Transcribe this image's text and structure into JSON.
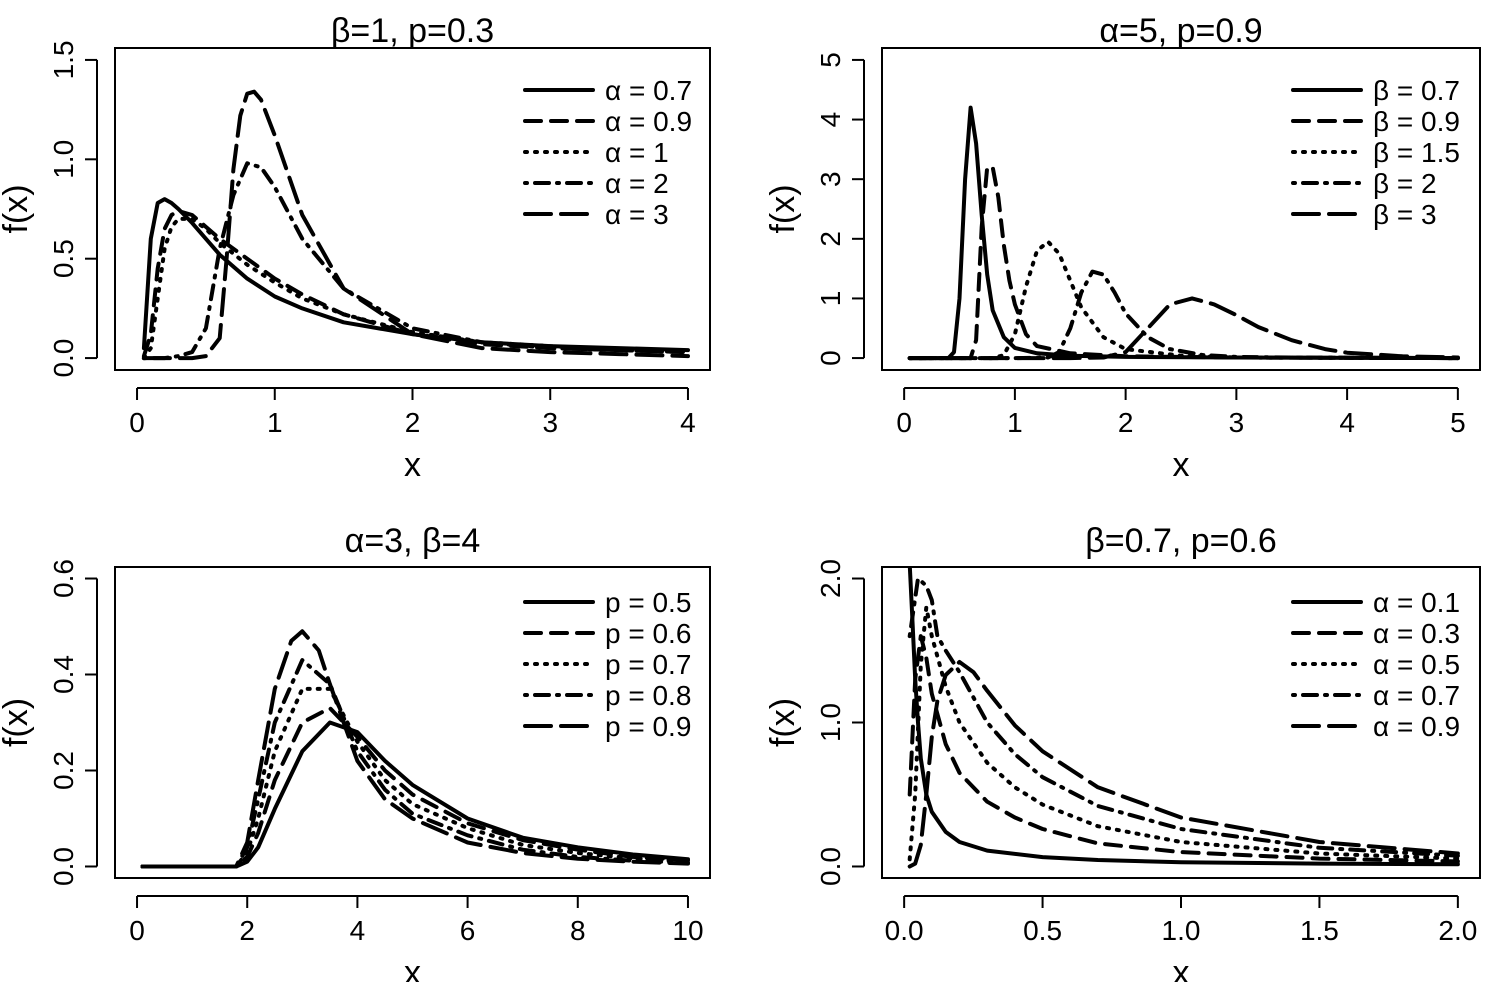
{
  "chart_data": [
    {
      "type": "line",
      "title": "β=1, p=0.3",
      "xlabel": "x",
      "ylabel": "f(x)",
      "xlim": [
        0,
        4
      ],
      "ylim": [
        0,
        1.5
      ],
      "xticks": [
        0,
        1,
        2,
        3,
        4
      ],
      "xtick_labels": [
        "0",
        "1",
        "2",
        "3",
        "4"
      ],
      "yticks": [
        0,
        0.5,
        1,
        1.5
      ],
      "ytick_labels": [
        "0.0",
        "0.5",
        "1.0",
        "1.5"
      ],
      "legend": "top-right",
      "series": [
        {
          "name": "α = 0.7",
          "dash": "solid",
          "x": [
            0.05,
            0.1,
            0.15,
            0.2,
            0.25,
            0.3,
            0.4,
            0.5,
            0.6,
            0.8,
            1.0,
            1.2,
            1.5,
            2.0,
            2.5,
            3.0,
            3.5,
            4.0
          ],
          "y": [
            0.05,
            0.6,
            0.78,
            0.8,
            0.78,
            0.75,
            0.68,
            0.6,
            0.52,
            0.4,
            0.31,
            0.25,
            0.18,
            0.12,
            0.08,
            0.06,
            0.05,
            0.04
          ]
        },
        {
          "name": "α = 0.9",
          "dash": "dashed",
          "x": [
            0.05,
            0.1,
            0.15,
            0.2,
            0.25,
            0.3,
            0.4,
            0.5,
            0.6,
            0.8,
            1.0,
            1.2,
            1.5,
            2.0,
            2.5,
            3.0,
            3.5,
            4.0
          ],
          "y": [
            0.01,
            0.12,
            0.45,
            0.65,
            0.72,
            0.74,
            0.72,
            0.66,
            0.6,
            0.5,
            0.4,
            0.32,
            0.22,
            0.12,
            0.07,
            0.05,
            0.04,
            0.03
          ]
        },
        {
          "name": "α = 1",
          "dash": "dotted",
          "x": [
            0.05,
            0.1,
            0.15,
            0.2,
            0.25,
            0.3,
            0.4,
            0.5,
            0.6,
            0.8,
            1.0,
            1.2,
            1.5,
            2.0,
            2.5,
            3.0,
            3.5,
            4.0
          ],
          "y": [
            0.0,
            0.05,
            0.3,
            0.55,
            0.66,
            0.7,
            0.7,
            0.65,
            0.58,
            0.47,
            0.38,
            0.3,
            0.22,
            0.13,
            0.08,
            0.06,
            0.04,
            0.03
          ]
        },
        {
          "name": "α = 2",
          "dash": "dotdash",
          "x": [
            0.05,
            0.2,
            0.3,
            0.4,
            0.5,
            0.55,
            0.6,
            0.7,
            0.8,
            0.9,
            1.0,
            1.2,
            1.5,
            2.0,
            2.5,
            3.0,
            3.5,
            4.0
          ],
          "y": [
            0.0,
            0.0,
            0.01,
            0.03,
            0.15,
            0.35,
            0.55,
            0.82,
            0.98,
            0.96,
            0.86,
            0.6,
            0.35,
            0.15,
            0.08,
            0.05,
            0.04,
            0.03
          ]
        },
        {
          "name": "α = 3",
          "dash": "longdash",
          "x": [
            0.05,
            0.4,
            0.5,
            0.6,
            0.65,
            0.7,
            0.75,
            0.8,
            0.85,
            0.9,
            1.0,
            1.2,
            1.5,
            2.0,
            2.5,
            3.0,
            3.5,
            4.0
          ],
          "y": [
            0.0,
            0.0,
            0.01,
            0.1,
            0.5,
            0.95,
            1.22,
            1.33,
            1.34,
            1.3,
            1.12,
            0.72,
            0.35,
            0.12,
            0.05,
            0.03,
            0.02,
            0.01
          ]
        }
      ]
    },
    {
      "type": "line",
      "title": "α=5, p=0.9",
      "xlabel": "x",
      "ylabel": "f(x)",
      "xlim": [
        0,
        5
      ],
      "ylim": [
        0,
        5
      ],
      "xticks": [
        0,
        1,
        2,
        3,
        4,
        5
      ],
      "xtick_labels": [
        "0",
        "1",
        "2",
        "3",
        "4",
        "5"
      ],
      "yticks": [
        0,
        1,
        2,
        3,
        4,
        5
      ],
      "ytick_labels": [
        "0",
        "1",
        "2",
        "3",
        "4",
        "5"
      ],
      "legend": "top-right",
      "series": [
        {
          "name": "β = 0.7",
          "dash": "solid",
          "x": [
            0.05,
            0.4,
            0.45,
            0.5,
            0.55,
            0.6,
            0.65,
            0.7,
            0.75,
            0.8,
            0.9,
            1.0,
            1.2,
            1.5,
            2.0,
            3.0,
            5.0
          ],
          "y": [
            0.0,
            0.0,
            0.1,
            1.0,
            3.0,
            4.2,
            3.6,
            2.4,
            1.4,
            0.8,
            0.35,
            0.17,
            0.08,
            0.04,
            0.02,
            0.01,
            0.0
          ]
        },
        {
          "name": "β = 0.9",
          "dash": "dashed",
          "x": [
            0.05,
            0.6,
            0.65,
            0.7,
            0.75,
            0.8,
            0.85,
            0.9,
            0.95,
            1.0,
            1.1,
            1.2,
            1.5,
            2.0,
            3.0,
            5.0
          ],
          "y": [
            0.0,
            0.0,
            0.3,
            2.2,
            3.2,
            3.2,
            2.7,
            1.9,
            1.3,
            0.9,
            0.4,
            0.2,
            0.08,
            0.03,
            0.01,
            0.0
          ]
        },
        {
          "name": "β = 1.5",
          "dash": "dotted",
          "x": [
            0.05,
            0.8,
            0.9,
            1.0,
            1.1,
            1.2,
            1.3,
            1.4,
            1.5,
            1.6,
            1.8,
            2.0,
            2.5,
            3.0,
            5.0
          ],
          "y": [
            0.0,
            0.0,
            0.05,
            0.4,
            1.2,
            1.8,
            1.95,
            1.75,
            1.3,
            0.85,
            0.35,
            0.15,
            0.04,
            0.01,
            0.0
          ]
        },
        {
          "name": "β = 2",
          "dash": "dotdash",
          "x": [
            0.05,
            1.0,
            1.3,
            1.4,
            1.5,
            1.6,
            1.7,
            1.8,
            1.9,
            2.0,
            2.2,
            2.4,
            2.7,
            3.0,
            3.5,
            5.0
          ],
          "y": [
            0.0,
            0.0,
            0.01,
            0.1,
            0.5,
            1.1,
            1.45,
            1.4,
            1.1,
            0.75,
            0.35,
            0.15,
            0.05,
            0.02,
            0.01,
            0.0
          ]
        },
        {
          "name": "β = 3",
          "dash": "longdash",
          "x": [
            0.05,
            1.5,
            1.8,
            2.0,
            2.2,
            2.4,
            2.6,
            2.8,
            3.0,
            3.2,
            3.5,
            3.8,
            4.0,
            4.5,
            5.0
          ],
          "y": [
            0.0,
            0.0,
            0.01,
            0.1,
            0.5,
            0.9,
            1.0,
            0.9,
            0.72,
            0.52,
            0.3,
            0.15,
            0.09,
            0.03,
            0.01
          ]
        }
      ]
    },
    {
      "type": "line",
      "title": "α=3, β=4",
      "xlabel": "x",
      "ylabel": "f(x)",
      "xlim": [
        0,
        10
      ],
      "ylim": [
        0,
        0.6
      ],
      "xticks": [
        0,
        2,
        4,
        6,
        8,
        10
      ],
      "xtick_labels": [
        "0",
        "2",
        "4",
        "6",
        "8",
        "10"
      ],
      "yticks": [
        0,
        0.2,
        0.4,
        0.6
      ],
      "ytick_labels": [
        "0.0",
        "0.2",
        "0.4",
        "0.6"
      ],
      "legend": "top-right",
      "series": [
        {
          "name": "p = 0.5",
          "dash": "solid",
          "x": [
            0.1,
            1.8,
            2.0,
            2.2,
            2.5,
            3.0,
            3.5,
            4.0,
            4.5,
            5.0,
            6.0,
            7.0,
            8.0,
            9.0,
            10.0
          ],
          "y": [
            0.0,
            0.0,
            0.01,
            0.04,
            0.12,
            0.24,
            0.3,
            0.28,
            0.22,
            0.17,
            0.1,
            0.06,
            0.04,
            0.025,
            0.015
          ]
        },
        {
          "name": "p = 0.6",
          "dash": "dashed",
          "x": [
            0.1,
            1.8,
            2.0,
            2.2,
            2.5,
            3.0,
            3.5,
            4.0,
            4.5,
            5.0,
            6.0,
            7.0,
            8.0,
            9.0,
            10.0
          ],
          "y": [
            0.0,
            0.0,
            0.02,
            0.07,
            0.18,
            0.3,
            0.33,
            0.27,
            0.2,
            0.15,
            0.09,
            0.055,
            0.035,
            0.02,
            0.013
          ]
        },
        {
          "name": "p = 0.7",
          "dash": "dotted",
          "x": [
            0.1,
            1.8,
            2.0,
            2.2,
            2.5,
            3.0,
            3.5,
            4.0,
            4.5,
            5.0,
            6.0,
            7.0,
            8.0,
            9.0,
            10.0
          ],
          "y": [
            0.0,
            0.0,
            0.03,
            0.1,
            0.24,
            0.37,
            0.37,
            0.26,
            0.18,
            0.13,
            0.08,
            0.045,
            0.028,
            0.017,
            0.01
          ]
        },
        {
          "name": "p = 0.8",
          "dash": "dotdash",
          "x": [
            0.1,
            1.8,
            2.0,
            2.2,
            2.5,
            3.0,
            3.5,
            4.0,
            4.5,
            5.0,
            6.0,
            7.0,
            8.0,
            9.0,
            10.0
          ],
          "y": [
            0.0,
            0.0,
            0.04,
            0.14,
            0.3,
            0.43,
            0.38,
            0.24,
            0.16,
            0.11,
            0.065,
            0.035,
            0.02,
            0.012,
            0.008
          ]
        },
        {
          "name": "p = 0.9",
          "dash": "longdash",
          "x": [
            0.1,
            1.8,
            2.0,
            2.2,
            2.5,
            2.8,
            3.0,
            3.3,
            3.5,
            4.0,
            4.5,
            5.0,
            6.0,
            7.0,
            8.0,
            9.0,
            10.0
          ],
          "y": [
            0.0,
            0.0,
            0.05,
            0.18,
            0.37,
            0.47,
            0.49,
            0.45,
            0.38,
            0.22,
            0.14,
            0.1,
            0.05,
            0.028,
            0.016,
            0.01,
            0.006
          ]
        }
      ]
    },
    {
      "type": "line",
      "title": "β=0.7, p=0.6",
      "xlabel": "x",
      "ylabel": "f(x)",
      "xlim": [
        0,
        2
      ],
      "ylim": [
        0,
        2
      ],
      "xticks": [
        0,
        0.5,
        1,
        1.5,
        2
      ],
      "xtick_labels": [
        "0.0",
        "0.5",
        "1.0",
        "1.5",
        "2.0"
      ],
      "yticks": [
        0,
        1,
        2
      ],
      "ytick_labels": [
        "0.0",
        "1.0",
        "2.0"
      ],
      "legend": "top-right",
      "series": [
        {
          "name": "α = 0.1",
          "dash": "solid",
          "x": [
            0.02,
            0.03,
            0.04,
            0.05,
            0.06,
            0.08,
            0.1,
            0.15,
            0.2,
            0.3,
            0.5,
            0.7,
            1.0,
            1.5,
            2.0
          ],
          "y": [
            2.1,
            1.7,
            1.3,
            1.0,
            0.75,
            0.5,
            0.38,
            0.24,
            0.17,
            0.11,
            0.065,
            0.045,
            0.03,
            0.02,
            0.015
          ]
        },
        {
          "name": "α = 0.3",
          "dash": "dashed",
          "x": [
            0.02,
            0.04,
            0.06,
            0.08,
            0.1,
            0.15,
            0.2,
            0.3,
            0.4,
            0.5,
            0.7,
            1.0,
            1.5,
            2.0
          ],
          "y": [
            0.5,
            1.3,
            1.6,
            1.45,
            1.2,
            0.85,
            0.65,
            0.45,
            0.34,
            0.26,
            0.16,
            0.1,
            0.055,
            0.035
          ]
        },
        {
          "name": "α = 0.5",
          "dash": "dotted",
          "x": [
            0.02,
            0.04,
            0.06,
            0.08,
            0.1,
            0.15,
            0.2,
            0.3,
            0.4,
            0.5,
            0.7,
            1.0,
            1.5,
            2.0
          ],
          "y": [
            0.05,
            0.5,
            1.4,
            1.8,
            1.6,
            1.25,
            1.0,
            0.72,
            0.55,
            0.43,
            0.28,
            0.17,
            0.09,
            0.055
          ]
        },
        {
          "name": "α = 0.7",
          "dash": "dotdash",
          "x": [
            0.02,
            0.05,
            0.08,
            0.1,
            0.12,
            0.15,
            0.2,
            0.3,
            0.4,
            0.5,
            0.7,
            1.0,
            1.5,
            2.0
          ],
          "y": [
            1.6,
            2.0,
            1.95,
            1.85,
            1.6,
            1.5,
            1.35,
            1.0,
            0.78,
            0.62,
            0.42,
            0.26,
            0.13,
            0.075
          ]
        },
        {
          "name": "α = 0.9",
          "dash": "longdash",
          "x": [
            0.02,
            0.04,
            0.06,
            0.08,
            0.1,
            0.12,
            0.15,
            0.2,
            0.25,
            0.3,
            0.4,
            0.5,
            0.7,
            1.0,
            1.5,
            2.0
          ],
          "y": [
            0.0,
            0.02,
            0.15,
            0.5,
            0.9,
            1.15,
            1.33,
            1.42,
            1.35,
            1.22,
            0.98,
            0.8,
            0.55,
            0.34,
            0.17,
            0.09
          ]
        }
      ]
    }
  ]
}
